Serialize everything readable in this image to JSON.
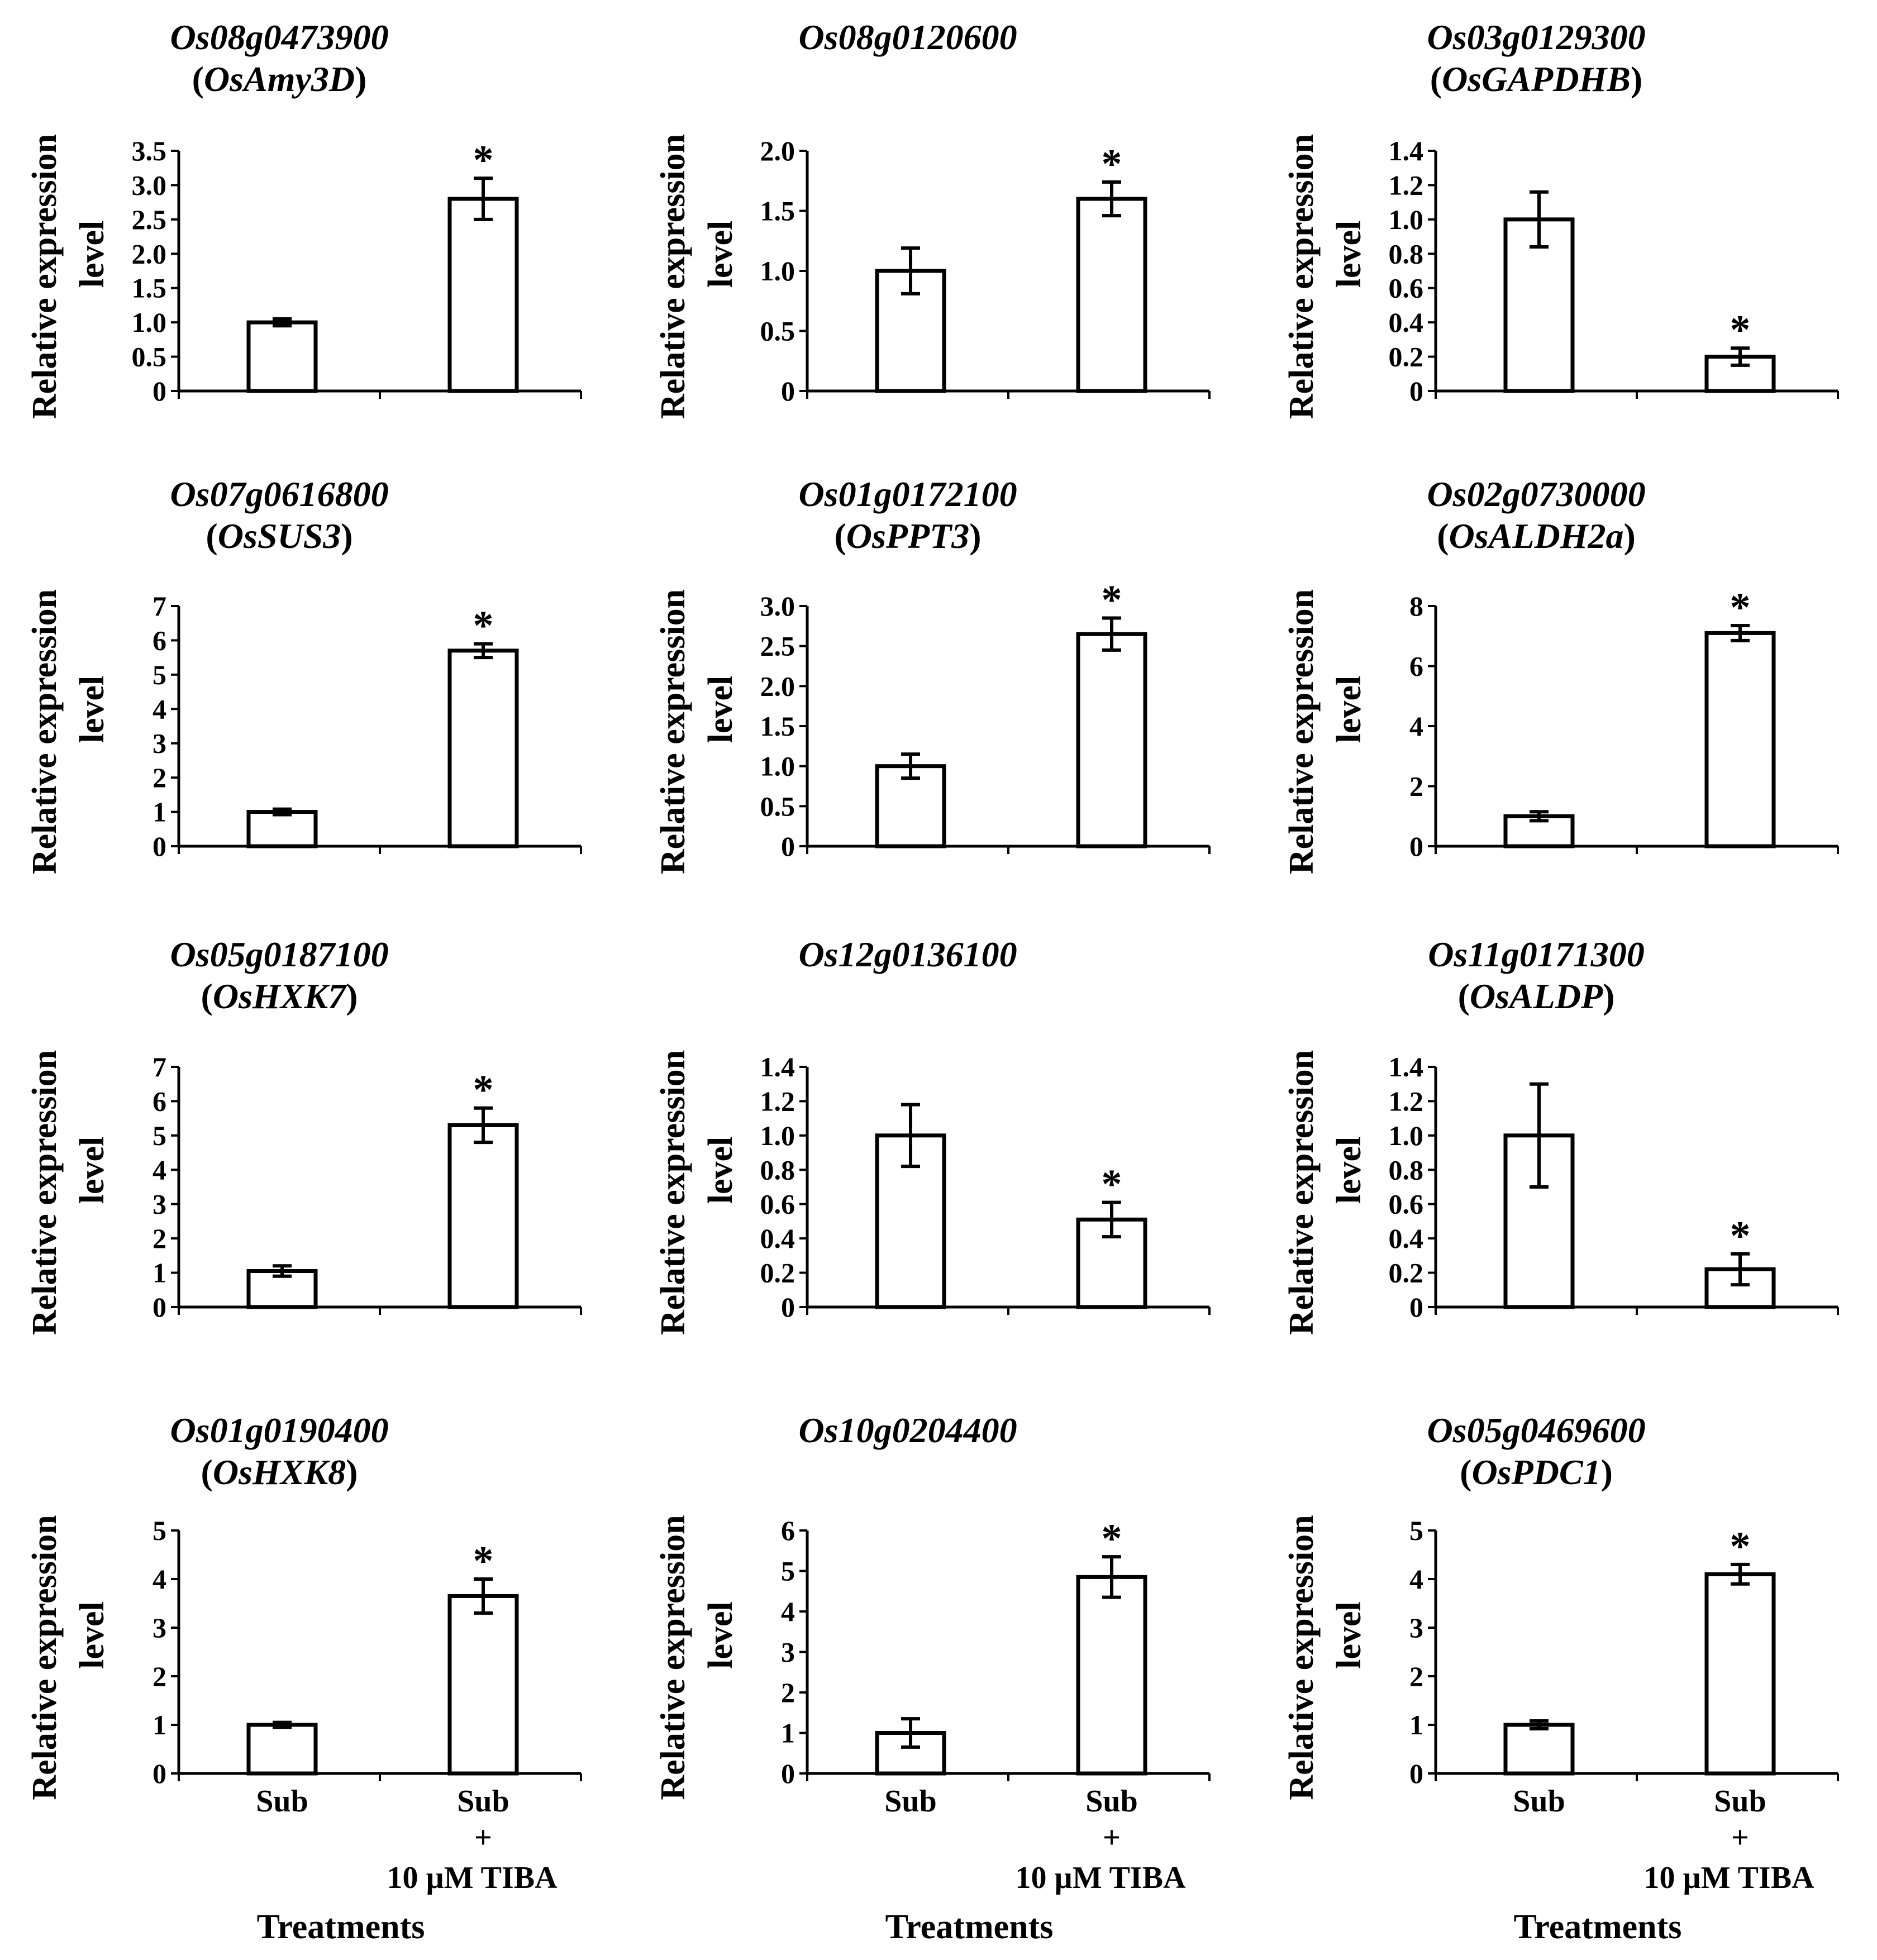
{
  "figure_type": "bar chart grid",
  "chart_data": [
    {
      "type": "bar",
      "title_line1": "Os08g0473900",
      "title_line2": "OsAmy3D",
      "ylabel_line1": "Relative expression",
      "ylabel_line2": "level",
      "ylim": [
        0,
        3.5
      ],
      "yticks": [
        "0",
        "0.5",
        "1.0",
        "1.5",
        "2.0",
        "2.5",
        "3.0",
        "3.5"
      ],
      "categories": [
        "Sub",
        "Sub + 10 µM TIBA"
      ],
      "values": [
        1.0,
        2.8
      ],
      "errors": [
        0.05,
        0.3
      ],
      "significance": [
        "",
        "*"
      ]
    },
    {
      "type": "bar",
      "title_line1": "Os08g0120600",
      "title_line2": "",
      "ylabel_line1": "Relative expression",
      "ylabel_line2": "level",
      "ylim": [
        0,
        2.0
      ],
      "yticks": [
        "0",
        "0.5",
        "1.0",
        "1.5",
        "2.0"
      ],
      "categories": [
        "Sub",
        "Sub + 10 µM TIBA"
      ],
      "values": [
        1.0,
        1.6
      ],
      "errors": [
        0.19,
        0.14
      ],
      "significance": [
        "",
        "*"
      ]
    },
    {
      "type": "bar",
      "title_line1": "Os03g0129300",
      "title_line2": "OsGAPDHB",
      "ylabel_line1": "Relative expression",
      "ylabel_line2": "level",
      "ylim": [
        0,
        1.4
      ],
      "yticks": [
        "0",
        "0.2",
        "0.4",
        "0.6",
        "0.8",
        "1.0",
        "1.2",
        "1.4"
      ],
      "categories": [
        "Sub",
        "Sub + 10 µM TIBA"
      ],
      "values": [
        1.0,
        0.2
      ],
      "errors": [
        0.16,
        0.05
      ],
      "significance": [
        "",
        "*"
      ]
    },
    {
      "type": "bar",
      "title_line1": "Os07g0616800",
      "title_line2": "OsSUS3",
      "ylabel_line1": "Relative expression",
      "ylabel_line2": "level",
      "ylim": [
        0,
        7
      ],
      "yticks": [
        "0",
        "1",
        "2",
        "3",
        "4",
        "5",
        "6",
        "7"
      ],
      "categories": [
        "Sub",
        "Sub + 10 µM TIBA"
      ],
      "values": [
        1.0,
        5.7
      ],
      "errors": [
        0.08,
        0.2
      ],
      "significance": [
        "",
        "*"
      ]
    },
    {
      "type": "bar",
      "title_line1": "Os01g0172100",
      "title_line2": "OsPPT3",
      "ylabel_line1": "Relative expression",
      "ylabel_line2": "level",
      "ylim": [
        0,
        3.0
      ],
      "yticks": [
        "0",
        "0.5",
        "1.0",
        "1.5",
        "2.0",
        "2.5",
        "3.0"
      ],
      "categories": [
        "Sub",
        "Sub + 10 µM TIBA"
      ],
      "values": [
        1.0,
        2.65
      ],
      "errors": [
        0.15,
        0.2
      ],
      "significance": [
        "",
        "*"
      ]
    },
    {
      "type": "bar",
      "title_line1": "Os02g0730000",
      "title_line2": "OsALDH2a",
      "ylabel_line1": "Relative expression",
      "ylabel_line2": "level",
      "ylim": [
        0,
        8
      ],
      "yticks": [
        "0",
        "2",
        "4",
        "6",
        "8"
      ],
      "categories": [
        "Sub",
        "Sub + 10 µM TIBA"
      ],
      "values": [
        1.0,
        7.1
      ],
      "errors": [
        0.15,
        0.25
      ],
      "significance": [
        "",
        "*"
      ]
    },
    {
      "type": "bar",
      "title_line1": "Os05g0187100",
      "title_line2": "OsHXK7",
      "ylabel_line1": "Relative expression",
      "ylabel_line2": "level",
      "ylim": [
        0,
        7
      ],
      "yticks": [
        "0",
        "1",
        "2",
        "3",
        "4",
        "5",
        "6",
        "7"
      ],
      "categories": [
        "Sub",
        "Sub + 10 µM TIBA"
      ],
      "values": [
        1.05,
        5.3
      ],
      "errors": [
        0.15,
        0.5
      ],
      "significance": [
        "",
        "*"
      ]
    },
    {
      "type": "bar",
      "title_line1": "Os12g0136100",
      "title_line2": "",
      "ylabel_line1": "Relative expression",
      "ylabel_line2": "level",
      "ylim": [
        0,
        1.4
      ],
      "yticks": [
        "0",
        "0.2",
        "0.4",
        "0.6",
        "0.8",
        "1.0",
        "1.2",
        "1.4"
      ],
      "categories": [
        "Sub",
        "Sub + 10 µM TIBA"
      ],
      "values": [
        1.0,
        0.51
      ],
      "errors": [
        0.18,
        0.1
      ],
      "significance": [
        "",
        "*"
      ]
    },
    {
      "type": "bar",
      "title_line1": "Os11g0171300",
      "title_line2": "OsALDP",
      "ylabel_line1": "Relative expression",
      "ylabel_line2": "level",
      "ylim": [
        0,
        1.4
      ],
      "yticks": [
        "0",
        "0.2",
        "0.4",
        "0.6",
        "0.8",
        "1.0",
        "1.2",
        "1.4"
      ],
      "categories": [
        "Sub",
        "Sub + 10 µM TIBA"
      ],
      "values": [
        1.0,
        0.22
      ],
      "errors": [
        0.3,
        0.09
      ],
      "significance": [
        "",
        "*"
      ]
    },
    {
      "type": "bar",
      "title_line1": "Os01g0190400",
      "title_line2": "OsHXK8",
      "ylabel_line1": "Relative expression",
      "ylabel_line2": "level",
      "ylim": [
        0,
        5
      ],
      "yticks": [
        "0",
        "1",
        "2",
        "3",
        "4",
        "5"
      ],
      "categories": [
        "Sub",
        "Sub + 10 µM TIBA"
      ],
      "values": [
        1.0,
        3.65
      ],
      "errors": [
        0.05,
        0.35
      ],
      "significance": [
        "",
        "*"
      ],
      "xlabel": "Treatments"
    },
    {
      "type": "bar",
      "title_line1": "Os10g0204400",
      "title_line2": "",
      "ylabel_line1": "Relative expression",
      "ylabel_line2": "level",
      "ylim": [
        0,
        6
      ],
      "yticks": [
        "0",
        "1",
        "2",
        "3",
        "4",
        "5",
        "6"
      ],
      "categories": [
        "Sub",
        "Sub + 10 µM TIBA"
      ],
      "values": [
        1.0,
        4.85
      ],
      "errors": [
        0.35,
        0.5
      ],
      "significance": [
        "",
        "*"
      ],
      "xlabel": "Treatments"
    },
    {
      "type": "bar",
      "title_line1": "Os05g0469600",
      "title_line2": "OsPDC1",
      "ylabel_line1": "Relative expression",
      "ylabel_line2": "level",
      "ylim": [
        0,
        5
      ],
      "yticks": [
        "0",
        "1",
        "2",
        "3",
        "4",
        "5"
      ],
      "categories": [
        "Sub",
        "Sub + 10 µM TIBA"
      ],
      "values": [
        1.0,
        4.1
      ],
      "errors": [
        0.08,
        0.2
      ],
      "significance": [
        "",
        "*"
      ],
      "xlabel": "Treatments"
    }
  ],
  "category_label_parts": {
    "sub": "Sub",
    "plus": "+",
    "tiba": "10 µM TIBA"
  }
}
